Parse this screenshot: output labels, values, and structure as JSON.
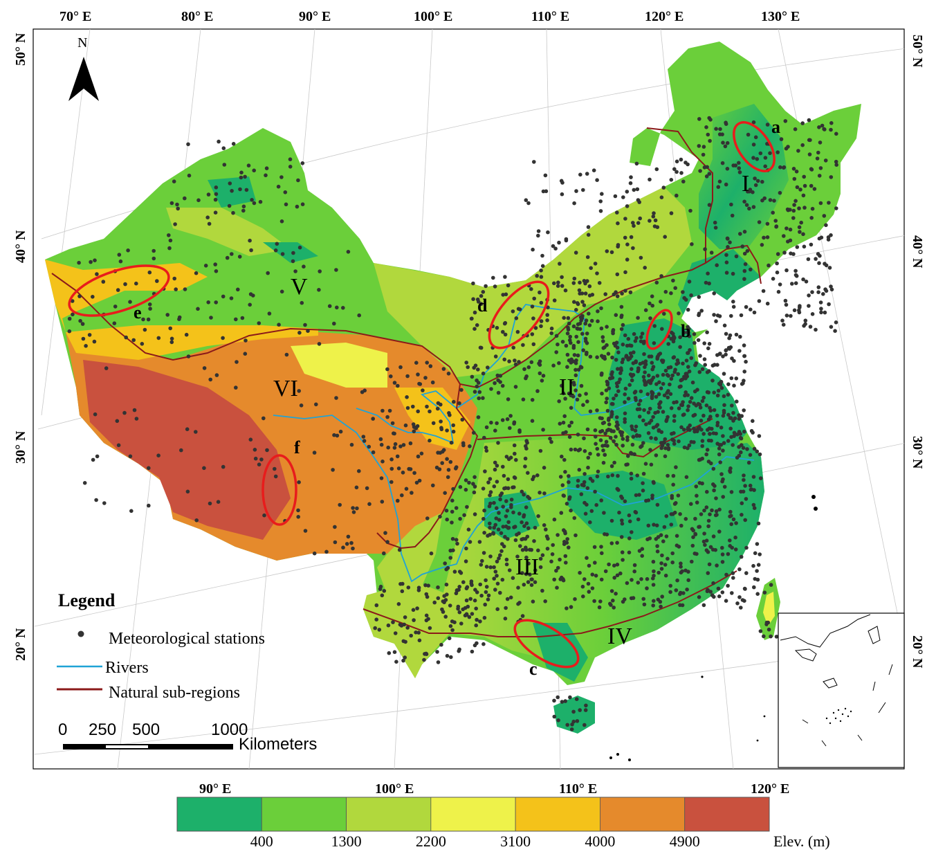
{
  "north_arrow": {
    "label": "N"
  },
  "longitude_labels_top": [
    "70° E",
    "80° E",
    "90° E",
    "100° E",
    "110° E",
    "120° E",
    "130° E"
  ],
  "latitude_labels_left": [
    "50° N",
    "40° N",
    "30° N",
    "20° N"
  ],
  "latitude_labels_right": [
    "50° N",
    "40° N",
    "30° N",
    "20° N"
  ],
  "longitude_labels_bottom": [
    "90° E",
    "100° E",
    "110° E",
    "120° E"
  ],
  "regions": [
    {
      "id": "I",
      "label": "I"
    },
    {
      "id": "II",
      "label": "II"
    },
    {
      "id": "III",
      "label": "III"
    },
    {
      "id": "IV",
      "label": "IV"
    },
    {
      "id": "V",
      "label": "V"
    },
    {
      "id": "VI",
      "label": "VI"
    }
  ],
  "study_sites": [
    {
      "id": "a",
      "label": "a"
    },
    {
      "id": "b",
      "label": "b"
    },
    {
      "id": "c",
      "label": "c"
    },
    {
      "id": "d",
      "label": "d"
    },
    {
      "id": "e",
      "label": "e"
    },
    {
      "id": "f",
      "label": "f"
    }
  ],
  "legend": {
    "title": "Legend",
    "items": [
      {
        "label": "Meteorological stations",
        "symbol": "dot",
        "color": "#333333"
      },
      {
        "label": "Rivers",
        "symbol": "line",
        "color": "#1fa3d6"
      },
      {
        "label": "Natural sub-regions",
        "symbol": "line",
        "color": "#8b1a1a"
      }
    ]
  },
  "scale_bar": {
    "ticks": [
      "0",
      "250",
      "500",
      "1000"
    ],
    "unit": "Kilometers"
  },
  "elevation_legend": {
    "title": "Elev. (m)",
    "breaks": [
      "400",
      "1300",
      "2200",
      "3100",
      "4000",
      "4900"
    ],
    "colors": [
      "#1db06a",
      "#6bcf3a",
      "#b1d83d",
      "#eef24a",
      "#f4c21a",
      "#e58a2c",
      "#c9513e"
    ]
  },
  "colors": {
    "rivers": "#1fa3d6",
    "subregion_boundary": "#8b1a1a",
    "study_site_ellipse": "#e81c1c",
    "station_dot": "#333333"
  }
}
